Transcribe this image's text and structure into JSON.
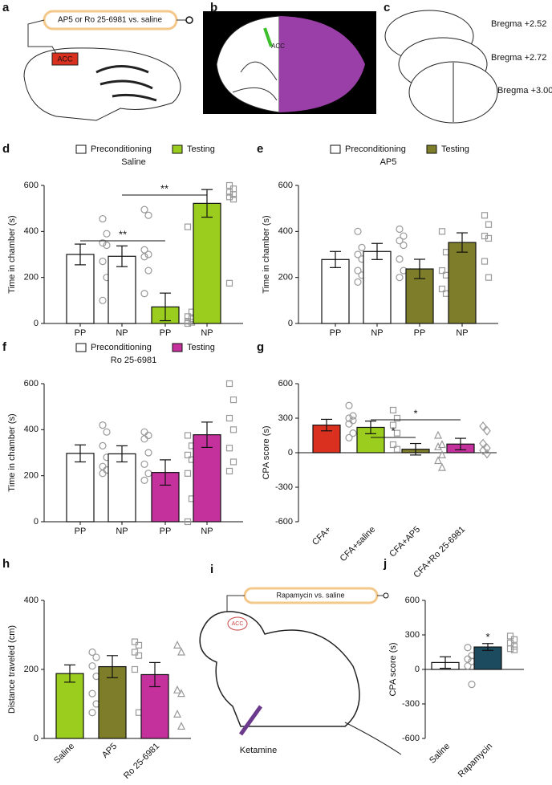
{
  "panels": {
    "a": {
      "label": "a",
      "pill": "AP5 or Ro 25-6981 vs. saline",
      "region": "ACC"
    },
    "b": {
      "label": "b",
      "region": "ACC"
    },
    "c": {
      "label": "c",
      "levels": [
        "Bregma +2.52",
        "Bregma +2.72",
        "Bregma +3.00"
      ]
    },
    "i": {
      "label": "i",
      "pill": "Rapamycin vs. saline",
      "region": "ACC",
      "drug": "Ketamine"
    }
  },
  "chart_data": [
    {
      "panel": "d",
      "type": "bar",
      "title": "Saline",
      "ylabel": "Time in chamber (s)",
      "legend": {
        "labels": [
          "Preconditioning",
          "Testing"
        ],
        "colors": [
          "#ffffff",
          "#9acd1e"
        ]
      },
      "categories": [
        "PP",
        "NP",
        "PP",
        "NP"
      ],
      "values": [
        300,
        292,
        72,
        522
      ],
      "errors": [
        45,
        45,
        60,
        60
      ],
      "colors": [
        "#ffffff",
        "#ffffff",
        "#9acd1e",
        "#9acd1e"
      ],
      "markers": [
        "circle",
        "circle",
        "square",
        "square"
      ],
      "points": [
        [
          455,
          390,
          350,
          340,
          270,
          200,
          100
        ],
        [
          495,
          470,
          320,
          300,
          290,
          230,
          130
        ],
        [
          420,
          50,
          30,
          20,
          10,
          5,
          0
        ],
        [
          600,
          585,
          570,
          560,
          550,
          540,
          175
        ]
      ],
      "annotations": [
        {
          "text": "**",
          "from": 0,
          "to": 2
        },
        {
          "text": "**",
          "from": 1,
          "to": 3
        }
      ],
      "ylim": [
        0,
        600
      ],
      "yticks": [
        0,
        200,
        400,
        600
      ]
    },
    {
      "panel": "e",
      "type": "bar",
      "title": "AP5",
      "ylabel": "Time in  chamber (s)",
      "legend": {
        "labels": [
          "Preconditioning",
          "Testing"
        ],
        "colors": [
          "#ffffff",
          "#7d7d2a"
        ]
      },
      "categories": [
        "PP",
        "NP",
        "PP",
        "NP"
      ],
      "values": [
        278,
        313,
        237,
        352
      ],
      "errors": [
        35,
        35,
        42,
        42
      ],
      "colors": [
        "#ffffff",
        "#ffffff",
        "#7d7d2a",
        "#7d7d2a"
      ],
      "markers": [
        "circle",
        "circle",
        "square",
        "square"
      ],
      "points": [
        [
          400,
          330,
          300,
          280,
          230,
          210,
          180
        ],
        [
          410,
          380,
          360,
          340,
          280,
          230,
          200
        ],
        [
          400,
          310,
          230,
          210,
          150,
          130
        ],
        [
          470,
          430,
          380,
          370,
          270,
          200
        ]
      ],
      "annotations": [],
      "ylim": [
        0,
        600
      ],
      "yticks": [
        0,
        200,
        400,
        600
      ]
    },
    {
      "panel": "f",
      "type": "bar",
      "title": "Ro 25-6981",
      "ylabel": "Time in  chamber (s)",
      "legend": {
        "labels": [
          "Preconditioning",
          "Testing"
        ],
        "colors": [
          "#ffffff",
          "#c4309c"
        ]
      },
      "categories": [
        "PP",
        "NP",
        "PP",
        "NP"
      ],
      "values": [
        297,
        295,
        214,
        378
      ],
      "errors": [
        37,
        35,
        55,
        55
      ],
      "colors": [
        "#ffffff",
        "#ffffff",
        "#c4309c",
        "#c4309c"
      ],
      "markers": [
        "circle",
        "circle",
        "square",
        "square"
      ],
      "points": [
        [
          420,
          390,
          330,
          280,
          240,
          225,
          210
        ],
        [
          390,
          375,
          360,
          300,
          250,
          210,
          180
        ],
        [
          375,
          330,
          290,
          270,
          210,
          100,
          0
        ],
        [
          600,
          530,
          450,
          400,
          320,
          260,
          220
        ]
      ],
      "annotations": [],
      "ylim": [
        0,
        600
      ],
      "yticks": [
        0,
        200,
        400,
        600
      ]
    },
    {
      "panel": "g",
      "type": "bar",
      "ylabel": "CPA score (s)",
      "categories": [
        "CFA+",
        "CFA+saline",
        "CFA+AP5",
        "CFA+Ro 25-6981"
      ],
      "values": [
        240,
        220,
        30,
        75
      ],
      "errors": [
        50,
        55,
        50,
        50
      ],
      "colors": [
        "#d9301f",
        "#9acd1e",
        "#7d7d2a",
        "#c4309c"
      ],
      "markers": [
        "circle",
        "square",
        "triangle",
        "diamond"
      ],
      "points": [
        [
          410,
          320,
          300,
          280,
          250,
          170,
          130
        ],
        [
          370,
          300,
          240,
          170,
          70,
          30
        ],
        [
          150,
          70,
          50,
          -20,
          -70,
          -130
        ],
        [
          230,
          190,
          80,
          40,
          20,
          -10
        ]
      ],
      "annotations": [
        {
          "text": "*",
          "from": 1,
          "to": 3
        },
        {
          "text": "*",
          "from": 1,
          "to": 2
        }
      ],
      "ylim": [
        -600,
        600
      ],
      "yticks": [
        -600,
        -300,
        0,
        300,
        600
      ]
    },
    {
      "panel": "h",
      "type": "bar",
      "ylabel": "Distance traveled (cm)",
      "categories": [
        "Saline",
        "AP5",
        "Ro 25-6981"
      ],
      "values": [
        188,
        208,
        185
      ],
      "errors": [
        25,
        32,
        35
      ],
      "colors": [
        "#9acd1e",
        "#7d7d2a",
        "#c4309c"
      ],
      "markers": [
        "circle",
        "square",
        "triangle"
      ],
      "points": [
        [
          250,
          235,
          210,
          180,
          130,
          100,
          75
        ],
        [
          280,
          270,
          250,
          240,
          200,
          75
        ],
        [
          270,
          250,
          140,
          130,
          70,
          35
        ]
      ],
      "annotations": [],
      "ylim": [
        0,
        400
      ],
      "yticks": [
        0,
        200,
        400
      ]
    },
    {
      "panel": "j",
      "type": "bar",
      "ylabel": "CPA score (s)",
      "categories": [
        "Saline",
        "Rapamycin"
      ],
      "values": [
        60,
        195
      ],
      "errors": [
        50,
        30
      ],
      "colors": [
        "#ffffff",
        "#1c4a5e"
      ],
      "markers": [
        "circle",
        "square"
      ],
      "points": [
        [
          190,
          120,
          90,
          70,
          30,
          -130
        ],
        [
          290,
          260,
          230,
          200,
          180,
          170
        ]
      ],
      "annotations": [
        {
          "text": "*",
          "from": 1,
          "to": 1
        }
      ],
      "ylim": [
        -600,
        600
      ],
      "yticks": [
        -600,
        -300,
        0,
        300,
        600
      ]
    }
  ]
}
